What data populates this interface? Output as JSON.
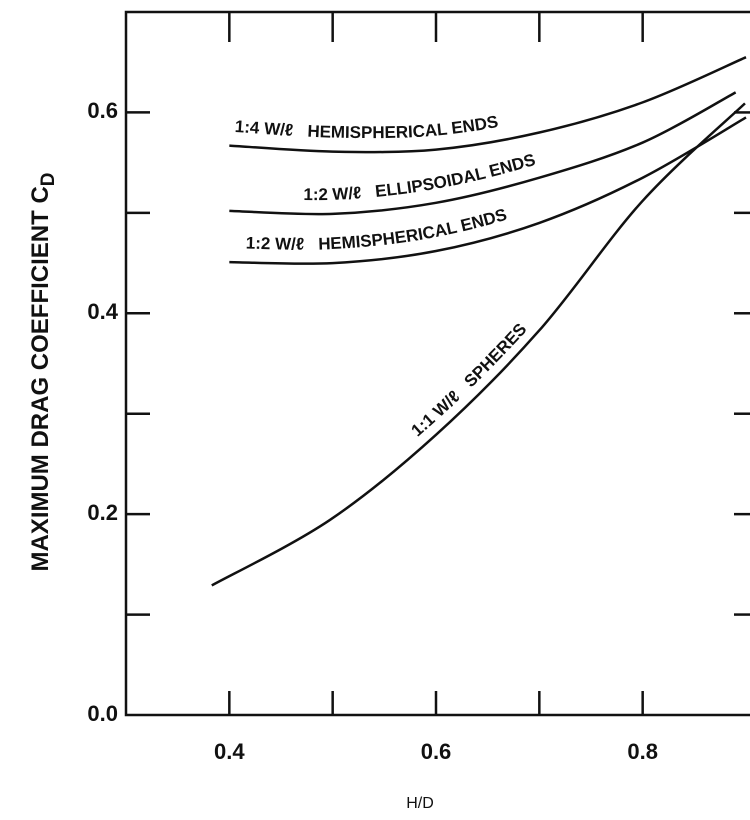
{
  "chart_data": {
    "type": "line",
    "xlabel": "H/D",
    "ylabel": "MAXIMUM DRAG COEFFICIENT C",
    "ylabel_subscript": "D",
    "xlim": [
      0.3,
      0.9
    ],
    "ylim": [
      0,
      0.7
    ],
    "xticks": [
      0.4,
      0.6,
      0.8
    ],
    "xminor_ticks": [
      0.5,
      0.7
    ],
    "yticks": [
      {
        "value": 0,
        "label": "0.0"
      },
      0.2,
      0.4,
      0.6
    ],
    "yminor_ticks": [
      0.1,
      0.3,
      0.5
    ],
    "series": [
      {
        "name": "1:4 W/ℓ   HEMISPHERICAL ENDS",
        "color": "#111111",
        "x": [
          0.4,
          0.5,
          0.6,
          0.7,
          0.8,
          0.9
        ],
        "values": [
          0.567,
          0.561,
          0.563,
          0.58,
          0.61,
          0.655
        ]
      },
      {
        "name": "1:2 W/ℓ   ELLIPSOIDAL ENDS",
        "color": "#111111",
        "x": [
          0.4,
          0.5,
          0.6,
          0.7,
          0.8,
          0.89
        ],
        "values": [
          0.502,
          0.499,
          0.51,
          0.535,
          0.57,
          0.62
        ]
      },
      {
        "name": "1:2 W/ℓ   HEMISPHERICAL ENDS",
        "color": "#111111",
        "x": [
          0.4,
          0.5,
          0.6,
          0.7,
          0.8,
          0.9
        ],
        "values": [
          0.451,
          0.45,
          0.462,
          0.49,
          0.535,
          0.595
        ]
      },
      {
        "name": "1:1 W/ℓ   SPHERES",
        "color": "#111111",
        "x": [
          0.383,
          0.497,
          0.6,
          0.7,
          0.8,
          0.899
        ],
        "values": [
          0.129,
          0.194,
          0.279,
          0.383,
          0.512,
          0.609
        ]
      }
    ]
  }
}
